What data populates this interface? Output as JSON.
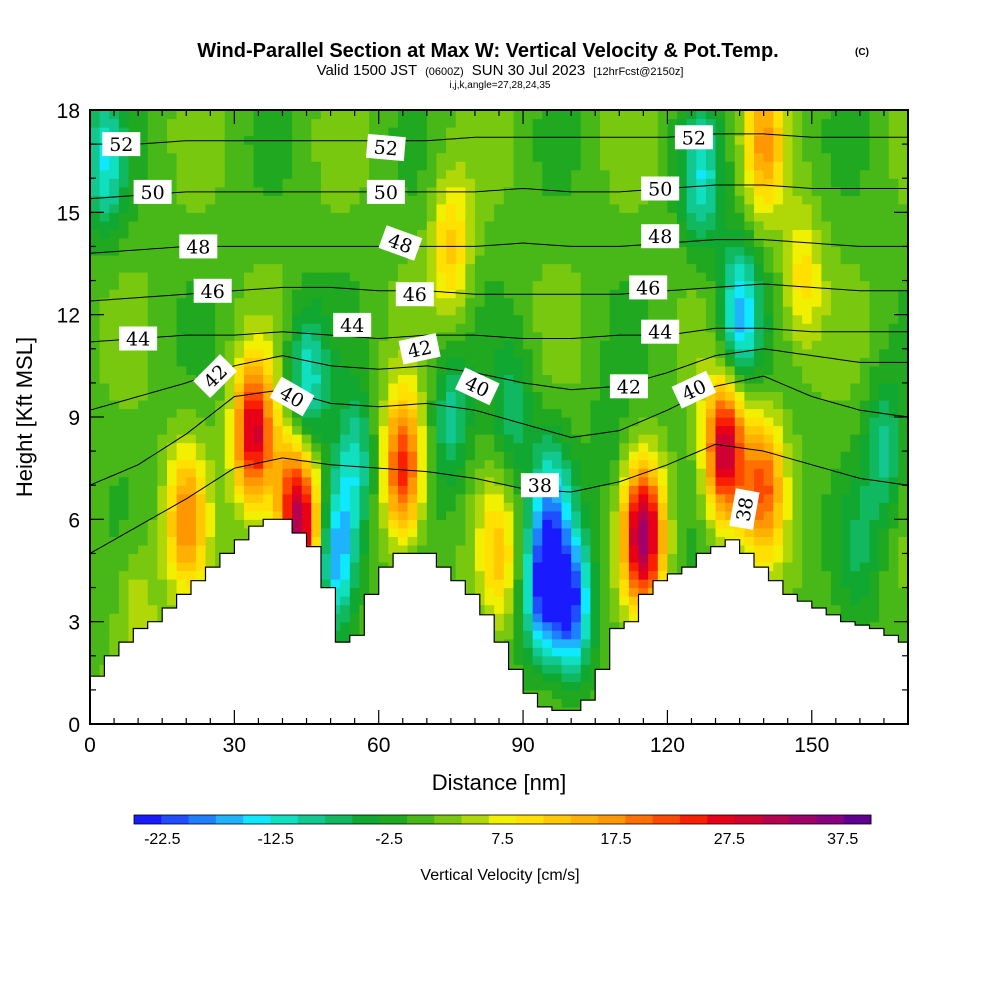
{
  "header": {
    "title": "Wind-Parallel Section at Max W: Vertical Velocity & Pot.Temp.",
    "copyright": "(C)",
    "valid_prefix": "Valid 1500 JST",
    "valid_utc": "(0600Z)",
    "valid_date": "SUN 30 Jul 2023",
    "forecast": "[12hrFcst@2150z]",
    "indices": "i,j,k,angle=27,28,24,35"
  },
  "chart_data": {
    "type": "heatmap",
    "xlabel": "Distance [nm]",
    "ylabel": "Height [Kft MSL]",
    "xlim": [
      0,
      170
    ],
    "ylim": [
      0,
      18
    ],
    "x_ticks": [
      0,
      30,
      60,
      90,
      120,
      150
    ],
    "y_ticks": [
      0,
      3,
      6,
      9,
      12,
      15,
      18
    ],
    "colorbar": {
      "title": "Vertical Velocity [cm/s]",
      "levels": [
        -25,
        -22.5,
        -20,
        -17.5,
        -15,
        -12.5,
        -10,
        -7.5,
        -5,
        -2.5,
        0,
        2.5,
        5,
        7.5,
        10,
        12.5,
        15,
        17.5,
        20,
        22.5,
        25,
        27.5,
        30,
        32.5,
        35,
        37.5,
        40
      ],
      "tick_labels": [
        "-22.5",
        "-12.5",
        "-2.5",
        "7.5",
        "17.5",
        "27.5",
        "37.5"
      ],
      "tick_values": [
        -22.5,
        -12.5,
        -2.5,
        7.5,
        17.5,
        27.5,
        37.5
      ],
      "colors": [
        "#1a1aff",
        "#1f4dff",
        "#1f80ff",
        "#1fb3ff",
        "#10e8ff",
        "#10e0c0",
        "#10c890",
        "#10b860",
        "#10a830",
        "#20a820",
        "#48b818",
        "#78c810",
        "#b0d808",
        "#f0f000",
        "#ffe000",
        "#ffc800",
        "#ffb000",
        "#ff9800",
        "#ff7000",
        "#ff4800",
        "#f82000",
        "#e80018",
        "#d00030",
        "#b80050",
        "#a00068",
        "#880080",
        "#600090"
      ]
    },
    "velocity_cores": [
      {
        "x": 3,
        "y": 16.5,
        "w": -13
      },
      {
        "x": 10,
        "y": 3.5,
        "w": 6
      },
      {
        "x": 20,
        "y": 6,
        "w": 17
      },
      {
        "x": 34,
        "y": 8.5,
        "w": 30
      },
      {
        "x": 42,
        "y": 7,
        "w": 14
      },
      {
        "x": 44,
        "y": 5.5,
        "w": 27
      },
      {
        "x": 45,
        "y": 10,
        "w": -14
      },
      {
        "x": 51,
        "y": 5,
        "w": -21
      },
      {
        "x": 55,
        "y": 7.5,
        "w": -13
      },
      {
        "x": 65,
        "y": 7.5,
        "w": 26
      },
      {
        "x": 75,
        "y": 9,
        "w": -10
      },
      {
        "x": 75,
        "y": 14,
        "w": 12
      },
      {
        "x": 85,
        "y": 5,
        "w": 11
      },
      {
        "x": 88,
        "y": 9,
        "w": -8
      },
      {
        "x": 94,
        "y": 4,
        "w": -22
      },
      {
        "x": 100,
        "y": 3.5,
        "w": -23
      },
      {
        "x": 96,
        "y": 6.5,
        "w": -13
      },
      {
        "x": 108,
        "y": 8,
        "w": -4
      },
      {
        "x": 115,
        "y": 5.5,
        "w": 34
      },
      {
        "x": 127,
        "y": 16,
        "w": -12
      },
      {
        "x": 132,
        "y": 8,
        "w": 32
      },
      {
        "x": 135,
        "y": 12,
        "w": -18
      },
      {
        "x": 140,
        "y": 7,
        "w": 20
      },
      {
        "x": 140,
        "y": 17,
        "w": 15
      },
      {
        "x": 148,
        "y": 13,
        "w": 10
      },
      {
        "x": 160,
        "y": 5,
        "w": -5
      },
      {
        "x": 165,
        "y": 8,
        "w": -10
      }
    ],
    "terrain": {
      "x": [
        0,
        3,
        6,
        9,
        12,
        15,
        18,
        21,
        24,
        27,
        30,
        33,
        36,
        39,
        42,
        45,
        48,
        51,
        54,
        57,
        60,
        63,
        66,
        69,
        72,
        75,
        78,
        81,
        84,
        87,
        90,
        93,
        96,
        99,
        102,
        105,
        108,
        111,
        114,
        117,
        120,
        123,
        126,
        129,
        132,
        135,
        138,
        141,
        144,
        147,
        150,
        153,
        156,
        159,
        162,
        165,
        168,
        170
      ],
      "height": [
        1.4,
        2.0,
        2.4,
        2.8,
        3.0,
        3.4,
        3.8,
        4.2,
        4.6,
        5.0,
        5.4,
        5.8,
        6.0,
        6.0,
        5.6,
        5.2,
        4.0,
        2.4,
        2.6,
        3.8,
        4.6,
        5.0,
        5.0,
        5.0,
        4.6,
        4.2,
        3.8,
        3.2,
        2.4,
        1.6,
        0.9,
        0.5,
        0.4,
        0.4,
        0.7,
        1.6,
        2.8,
        3.0,
        3.8,
        4.2,
        4.4,
        4.6,
        5.0,
        5.2,
        5.4,
        5.0,
        4.6,
        4.2,
        3.8,
        3.6,
        3.4,
        3.2,
        3.0,
        2.9,
        2.8,
        2.6,
        2.4,
        2.3
      ]
    },
    "isentropes": {
      "x": [
        0,
        10,
        20,
        30,
        40,
        50,
        60,
        70,
        80,
        90,
        100,
        110,
        120,
        130,
        140,
        150,
        160,
        170
      ],
      "lines": [
        {
          "theta": 38,
          "y": [
            5.0,
            5.8,
            6.6,
            7.5,
            7.8,
            7.6,
            7.5,
            7.4,
            7.2,
            6.9,
            6.8,
            7.1,
            7.6,
            8.2,
            8.0,
            7.6,
            7.2,
            7.0
          ]
        },
        {
          "theta": 40,
          "y": [
            7.0,
            7.6,
            8.5,
            9.6,
            9.8,
            9.4,
            9.3,
            9.4,
            9.2,
            8.8,
            8.4,
            8.6,
            9.2,
            9.9,
            10.2,
            9.6,
            9.2,
            9.0
          ]
        },
        {
          "theta": 42,
          "y": [
            9.2,
            9.6,
            10.0,
            10.5,
            10.8,
            10.5,
            10.4,
            10.5,
            10.3,
            10.0,
            9.8,
            9.9,
            10.3,
            10.8,
            11.0,
            10.8,
            10.6,
            10.6
          ]
        },
        {
          "theta": 44,
          "y": [
            11.2,
            11.3,
            11.4,
            11.4,
            11.5,
            11.4,
            11.3,
            11.4,
            11.4,
            11.3,
            11.3,
            11.4,
            11.4,
            11.6,
            11.6,
            11.5,
            11.5,
            11.5
          ]
        },
        {
          "theta": 46,
          "y": [
            12.4,
            12.5,
            12.6,
            12.7,
            12.8,
            12.8,
            12.7,
            12.7,
            12.6,
            12.6,
            12.6,
            12.6,
            12.7,
            12.8,
            12.9,
            12.8,
            12.7,
            12.7
          ]
        },
        {
          "theta": 48,
          "y": [
            13.8,
            13.9,
            14.0,
            14.0,
            14.0,
            14.0,
            14.0,
            14.0,
            14.0,
            14.1,
            14.0,
            14.0,
            14.1,
            14.2,
            14.2,
            14.1,
            14.0,
            14.0
          ]
        },
        {
          "theta": 50,
          "y": [
            15.4,
            15.5,
            15.6,
            15.6,
            15.6,
            15.6,
            15.6,
            15.6,
            15.6,
            15.7,
            15.6,
            15.6,
            15.7,
            15.8,
            15.8,
            15.7,
            15.7,
            15.7
          ]
        },
        {
          "theta": 52,
          "y": [
            17.0,
            17.0,
            17.1,
            17.1,
            17.1,
            17.1,
            17.1,
            17.1,
            17.2,
            17.2,
            17.2,
            17.2,
            17.2,
            17.3,
            17.3,
            17.2,
            17.2,
            17.2
          ]
        }
      ]
    },
    "contour_labels": [
      {
        "text": "52",
        "x": 6.5,
        "y": 17.0,
        "angle": 0
      },
      {
        "text": "50",
        "x": 13,
        "y": 15.6,
        "angle": 0
      },
      {
        "text": "48",
        "x": 22.5,
        "y": 14.0,
        "angle": 0
      },
      {
        "text": "46",
        "x": 25.5,
        "y": 12.7,
        "angle": 0
      },
      {
        "text": "44",
        "x": 10,
        "y": 11.3,
        "angle": 0
      },
      {
        "text": "42",
        "x": 26,
        "y": 10.2,
        "angle": -45
      },
      {
        "text": "40",
        "x": 42,
        "y": 9.6,
        "angle": 30
      },
      {
        "text": "52",
        "x": 61.5,
        "y": 16.9,
        "angle": 5
      },
      {
        "text": "50",
        "x": 61.5,
        "y": 15.6,
        "angle": 0
      },
      {
        "text": "48",
        "x": 64.5,
        "y": 14.1,
        "angle": 20
      },
      {
        "text": "46",
        "x": 67.5,
        "y": 12.6,
        "angle": 0
      },
      {
        "text": "44",
        "x": 54.5,
        "y": 11.7,
        "angle": 0
      },
      {
        "text": "42",
        "x": 68.5,
        "y": 11.0,
        "angle": -12
      },
      {
        "text": "40",
        "x": 80.5,
        "y": 9.9,
        "angle": 25
      },
      {
        "text": "38",
        "x": 93.5,
        "y": 7.0,
        "angle": 0
      },
      {
        "text": "52",
        "x": 125.5,
        "y": 17.2,
        "angle": 0
      },
      {
        "text": "50",
        "x": 118.5,
        "y": 15.7,
        "angle": 0
      },
      {
        "text": "48",
        "x": 118.5,
        "y": 14.3,
        "angle": 0
      },
      {
        "text": "46",
        "x": 116,
        "y": 12.8,
        "angle": 0
      },
      {
        "text": "44",
        "x": 118.5,
        "y": 11.5,
        "angle": 0
      },
      {
        "text": "42",
        "x": 112,
        "y": 9.9,
        "angle": 0
      },
      {
        "text": "40",
        "x": 125.5,
        "y": 9.8,
        "angle": -25
      },
      {
        "text": "38",
        "x": 136,
        "y": 6.3,
        "angle": -80
      }
    ]
  }
}
